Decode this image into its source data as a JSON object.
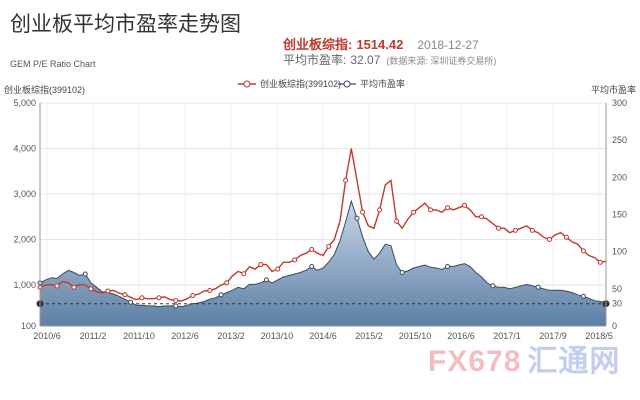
{
  "header": {
    "title": "创业板平均市盈率走势图",
    "subtitle": "GEM P/E Ratio Chart",
    "index_label": "创业板综指:",
    "index_value": "1514.42",
    "date": "2018-12-27",
    "pe_label": "平均市盈率:",
    "pe_value": "32.07",
    "source": "(数据来源: 深圳证券交易所)"
  },
  "watermark": {
    "left": "FX678",
    "right": "汇通网"
  },
  "chart_data": {
    "type": "line",
    "y_left_label": "创业板综指(399102)",
    "y_right_label": "平均市盈率",
    "ylim_left": [
      100,
      5000
    ],
    "ylim_right": [
      0,
      300
    ],
    "y_left_ticks": [
      100,
      1000,
      2000,
      3000,
      4000,
      5000
    ],
    "y_left_tick_labels": [
      "100",
      "1,000",
      "2,000",
      "3,000",
      "4,000",
      "5,000"
    ],
    "y_right_ticks": [
      0,
      30,
      50,
      100,
      150,
      200,
      250,
      300
    ],
    "x_tick_labels": [
      "2010/6",
      "2011/2",
      "2011/10",
      "2012/6",
      "2013/2",
      "2013/10",
      "2014/6",
      "2015/2",
      "2015/10",
      "2016/6",
      "2017/1",
      "2017/9",
      "2018/5"
    ],
    "legend_position": "top-center",
    "grid": true,
    "reference_line": {
      "axis": "right",
      "value": 30,
      "style": "dashed"
    },
    "series": [
      {
        "name": "创业板综指(399102)",
        "axis": "left",
        "color": "#c0392b",
        "values": [
          950,
          1000,
          1010,
          980,
          1080,
          1050,
          950,
          1010,
          1000,
          920,
          850,
          830,
          870,
          880,
          820,
          790,
          730,
          680,
          720,
          700,
          700,
          720,
          740,
          680,
          660,
          650,
          700,
          770,
          800,
          870,
          880,
          920,
          1000,
          1050,
          1200,
          1300,
          1250,
          1400,
          1350,
          1450,
          1450,
          1300,
          1350,
          1500,
          1500,
          1550,
          1650,
          1700,
          1780,
          1700,
          1650,
          1850,
          2000,
          2400,
          3300,
          4000,
          3300,
          2600,
          2300,
          2250,
          2650,
          3200,
          3300,
          2400,
          2250,
          2450,
          2600,
          2700,
          2800,
          2650,
          2650,
          2600,
          2700,
          2650,
          2700,
          2750,
          2650,
          2500,
          2500,
          2450,
          2350,
          2250,
          2250,
          2150,
          2200,
          2250,
          2300,
          2200,
          2150,
          2050,
          2000,
          2100,
          2150,
          2050,
          1950,
          1900,
          1750,
          1650,
          1600,
          1500,
          1520
        ]
      },
      {
        "name": "平均市盈率",
        "axis": "right",
        "color": "#3b4a60",
        "fill": "#8aa3bf",
        "values": [
          58,
          62,
          65,
          64,
          70,
          75,
          72,
          68,
          70,
          58,
          52,
          46,
          45,
          43,
          40,
          36,
          32,
          28,
          28,
          27,
          27,
          26,
          27,
          27,
          27,
          26,
          28,
          30,
          31,
          33,
          36,
          38,
          42,
          45,
          48,
          52,
          50,
          56,
          56,
          58,
          62,
          58,
          62,
          66,
          68,
          70,
          72,
          75,
          80,
          75,
          78,
          86,
          96,
          115,
          140,
          168,
          145,
          120,
          100,
          90,
          98,
          110,
          108,
          82,
          72,
          74,
          78,
          80,
          82,
          79,
          78,
          76,
          80,
          80,
          82,
          84,
          80,
          72,
          66,
          58,
          54,
          52,
          52,
          50,
          52,
          54,
          56,
          54,
          52,
          50,
          48,
          48,
          48,
          47,
          45,
          42,
          40,
          37,
          34,
          33,
          32
        ]
      }
    ]
  }
}
